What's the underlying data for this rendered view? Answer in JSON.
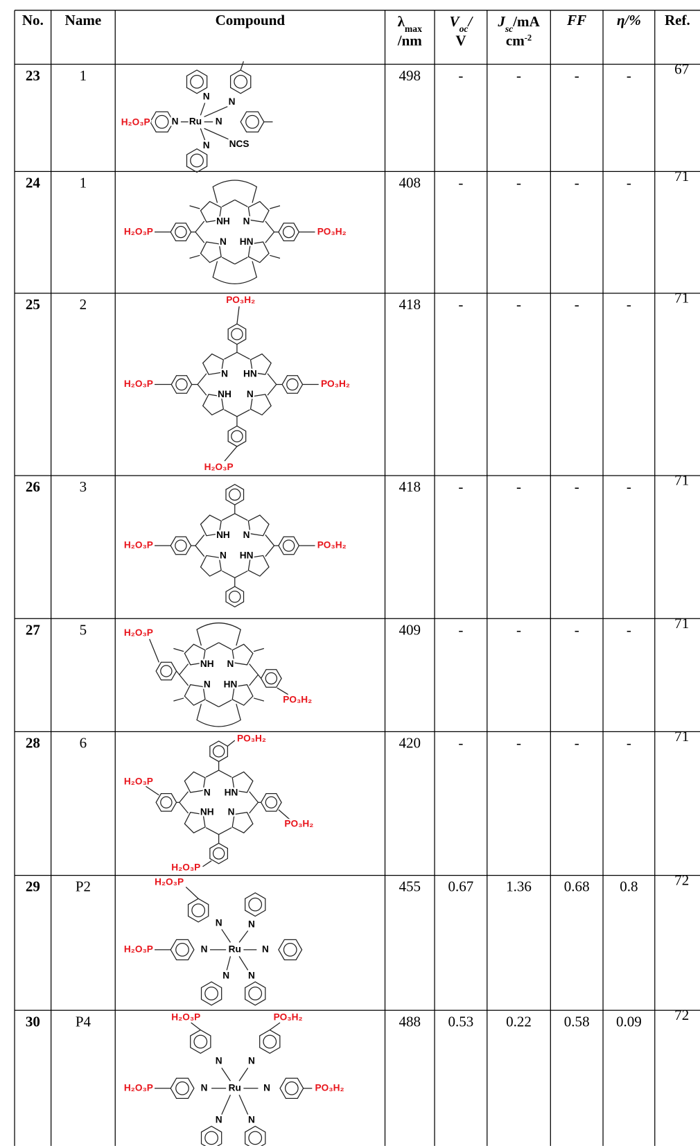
{
  "table": {
    "header": [
      {
        "text": "No."
      },
      {
        "text": "Name"
      },
      {
        "text": "Compound"
      },
      {
        "text": "λ",
        "sub": "max",
        "line2": "/nm"
      },
      {
        "text": "V",
        "sub": "oc",
        "rest": "/",
        "line2": "V"
      },
      {
        "text": "J",
        "sub": "sc",
        "rest": "/mA",
        "line2": "cm",
        "sup": "-2"
      },
      {
        "text": "FF"
      },
      {
        "text": "η/%"
      },
      {
        "text": "Ref."
      }
    ],
    "rows": [
      {
        "no": 23,
        "name": 1,
        "compound": [
          "H₂O₃P",
          "N",
          "N",
          "N",
          "Ru",
          "N",
          "N",
          "NCS"
        ],
        "lambda": 498,
        "voc": "-",
        "jsc": "-",
        "ff": "-",
        "eta": "-",
        "ref": 67
      },
      {
        "no": 24,
        "name": 1,
        "compound": [
          "H₂O₃P",
          "NH",
          "N",
          "N",
          "HN",
          "PO₃H₂"
        ],
        "lambda": 408,
        "voc": "-",
        "jsc": "-",
        "ff": "-",
        "eta": "-",
        "ref": 71
      },
      {
        "no": 25,
        "name": 2,
        "compound": [
          "PO₃H₂",
          "H₂O₃P",
          "N",
          "HN",
          "NH",
          "N",
          "PO₃H₂",
          "H₂O₃P"
        ],
        "lambda": 418,
        "voc": "-",
        "jsc": "-",
        "ff": "-",
        "eta": "-",
        "ref": 71
      },
      {
        "no": 26,
        "name": 3,
        "compound": [
          "H₂O₃P",
          "NH",
          "N",
          "N",
          "HN",
          "PO₃H₂"
        ],
        "lambda": 418,
        "voc": "-",
        "jsc": "-",
        "ff": "-",
        "eta": "-",
        "ref": 71
      },
      {
        "no": 27,
        "name": 5,
        "compound": [
          "H₂O₃P",
          "NH",
          "N",
          "N",
          "HN",
          "PO₃H₂"
        ],
        "lambda": 409,
        "voc": "-",
        "jsc": "-",
        "ff": "-",
        "eta": "-",
        "ref": 71
      },
      {
        "no": 28,
        "name": 6,
        "compound": [
          "PO₃H₂",
          "H₂O₃P",
          "N",
          "HN",
          "NH",
          "N",
          "PO₃H₂",
          "H₂O₃P"
        ],
        "lambda": 420,
        "voc": "-",
        "jsc": "-",
        "ff": "-",
        "eta": "-",
        "ref": 71
      },
      {
        "no": 29,
        "name": "P2",
        "compound": [
          "H₂O₃P",
          "N",
          "N",
          "H₂O₃P",
          "N",
          "Ru",
          "N",
          "N",
          "N"
        ],
        "lambda": 455,
        "voc": 0.67,
        "jsc": 1.36,
        "ff": 0.68,
        "eta": 0.8,
        "ref": 72
      },
      {
        "no": 30,
        "name": "P4",
        "compound": [
          "H₂O₃P",
          "PO₃H₂",
          "N",
          "N",
          "H₂O₃P",
          "N",
          "Ru",
          "N",
          "PO₃H₂",
          "N",
          "N"
        ],
        "lambda": 488,
        "voc": 0.53,
        "jsc": 0.22,
        "ff": 0.58,
        "eta": 0.09,
        "ref": 72
      }
    ]
  }
}
